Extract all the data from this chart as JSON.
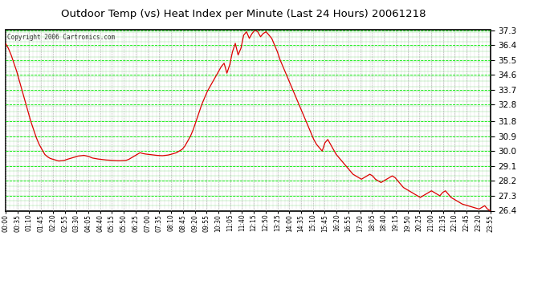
{
  "title": "Outdoor Temp (vs) Heat Index per Minute (Last 24 Hours) 20061218",
  "copyright": "Copyright 2006 Cartronics.com",
  "background_color": "#ffffff",
  "plot_bg_color": "#ffffff",
  "line_color": "#dd0000",
  "grid_color": "#00ff00",
  "grid_color2": "#888888",
  "y_min": 26.4,
  "y_max": 37.3,
  "y_ticks": [
    26.4,
    27.3,
    28.2,
    29.1,
    30.0,
    30.9,
    31.8,
    32.8,
    33.7,
    34.6,
    35.5,
    36.4,
    37.3
  ],
  "x_labels": [
    "00:00",
    "00:35",
    "01:10",
    "01:45",
    "02:20",
    "02:55",
    "03:30",
    "04:05",
    "04:40",
    "05:15",
    "05:50",
    "06:25",
    "07:00",
    "07:35",
    "08:10",
    "08:45",
    "09:20",
    "09:55",
    "10:30",
    "11:05",
    "11:40",
    "12:15",
    "12:50",
    "13:25",
    "14:00",
    "14:35",
    "15:10",
    "15:45",
    "16:20",
    "16:55",
    "17:30",
    "18:05",
    "18:40",
    "19:15",
    "19:50",
    "20:25",
    "21:00",
    "21:35",
    "22:10",
    "22:45",
    "23:20",
    "23:55"
  ],
  "curve": [
    36.5,
    36.2,
    35.8,
    35.3,
    34.8,
    34.2,
    33.6,
    33.0,
    32.4,
    31.8,
    31.3,
    30.8,
    30.4,
    30.1,
    29.8,
    29.65,
    29.55,
    29.5,
    29.45,
    29.4,
    29.42,
    29.44,
    29.5,
    29.55,
    29.6,
    29.65,
    29.7,
    29.72,
    29.74,
    29.7,
    29.65,
    29.58,
    29.55,
    29.52,
    29.5,
    29.48,
    29.46,
    29.45,
    29.44,
    29.43,
    29.42,
    29.42,
    29.43,
    29.44,
    29.5,
    29.6,
    29.7,
    29.8,
    29.9,
    29.85,
    29.82,
    29.8,
    29.78,
    29.76,
    29.74,
    29.73,
    29.72,
    29.74,
    29.76,
    29.8,
    29.85,
    29.9,
    30.0,
    30.1,
    30.3,
    30.6,
    30.9,
    31.3,
    31.8,
    32.3,
    32.8,
    33.2,
    33.6,
    33.9,
    34.2,
    34.5,
    34.8,
    35.1,
    35.3,
    34.7,
    35.2,
    36.0,
    36.5,
    35.8,
    36.2,
    37.0,
    37.2,
    36.8,
    37.1,
    37.3,
    37.2,
    36.9,
    37.1,
    37.2,
    37.0,
    36.8,
    36.4,
    36.0,
    35.5,
    35.1,
    34.7,
    34.3,
    33.9,
    33.5,
    33.1,
    32.7,
    32.3,
    31.9,
    31.5,
    31.1,
    30.7,
    30.4,
    30.2,
    30.0,
    30.5,
    30.7,
    30.4,
    30.1,
    29.8,
    29.6,
    29.4,
    29.2,
    29.0,
    28.8,
    28.6,
    28.5,
    28.4,
    28.3,
    28.4,
    28.5,
    28.6,
    28.5,
    28.3,
    28.2,
    28.1,
    28.2,
    28.3,
    28.4,
    28.5,
    28.4,
    28.2,
    28.0,
    27.8,
    27.7,
    27.6,
    27.5,
    27.4,
    27.3,
    27.2,
    27.3,
    27.4,
    27.5,
    27.6,
    27.5,
    27.4,
    27.3,
    27.5,
    27.6,
    27.4,
    27.2,
    27.1,
    27.0,
    26.9,
    26.8,
    26.75,
    26.7,
    26.65,
    26.6,
    26.55,
    26.5,
    26.6,
    26.7,
    26.5,
    26.4
  ]
}
